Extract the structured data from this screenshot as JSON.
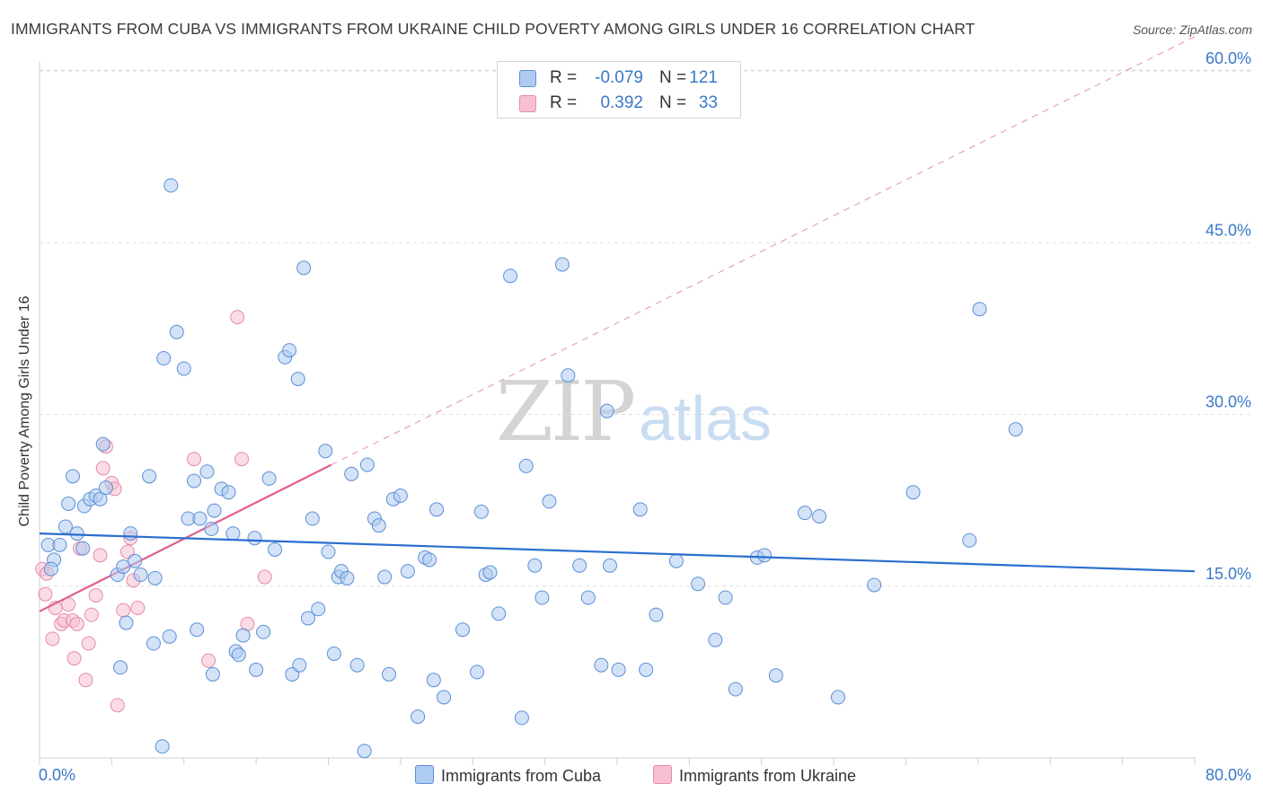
{
  "title": "IMMIGRANTS FROM CUBA VS IMMIGRANTS FROM UKRAINE CHILD POVERTY AMONG GIRLS UNDER 16 CORRELATION CHART",
  "source": "Source: ZipAtlas.com",
  "watermark": {
    "zip": "ZIP",
    "atlas": "atlas"
  },
  "legend": {
    "cuba": {
      "r_label": "R =",
      "r_value": "-0.079",
      "n_label": "N =",
      "n_value": "121"
    },
    "ukraine": {
      "r_label": "R =",
      "r_value": "0.392",
      "n_label": "N =",
      "n_value": "33"
    }
  },
  "bottom_legend": {
    "cuba": "Immigrants from Cuba",
    "ukraine": "Immigrants from Ukraine"
  },
  "colors": {
    "cuba_fill": "#aecbf0",
    "cuba_stroke": "#5b8fd6",
    "cuba_line": "#2b6fcf",
    "ukraine_fill": "#f6c0d2",
    "ukraine_stroke": "#e58aa8",
    "ukraine_line": "#e0608c",
    "axis_text": "#3a78c8",
    "grid": "#dddddd"
  },
  "chart_data": {
    "type": "scatter",
    "title": "IMMIGRANTS FROM CUBA VS IMMIGRANTS FROM UKRAINE CHILD POVERTY AMONG GIRLS UNDER 16 CORRELATION CHART",
    "xlabel": "",
    "ylabel": "Child Poverty Among Girls Under 16",
    "xlim": [
      0,
      80
    ],
    "ylim": [
      0,
      63
    ],
    "x_tick_labels": [
      "0.0%",
      "80.0%"
    ],
    "y_ticks": [
      15,
      30,
      45,
      60
    ],
    "y_tick_labels": [
      "15.0%",
      "30.0%",
      "45.0%",
      "60.0%"
    ],
    "grid": "horizontal dashed",
    "legend_position": "top-center",
    "series": [
      {
        "name": "Immigrants from Cuba",
        "R": -0.079,
        "N": 121,
        "trend": {
          "x": [
            0,
            80
          ],
          "y": [
            19.6,
            16.3
          ]
        },
        "points": [
          [
            0.6,
            18.6
          ],
          [
            1.0,
            17.3
          ],
          [
            0.8,
            16.5
          ],
          [
            1.4,
            18.6
          ],
          [
            1.8,
            20.2
          ],
          [
            2.0,
            22.2
          ],
          [
            2.3,
            24.6
          ],
          [
            2.6,
            19.6
          ],
          [
            3.1,
            22.0
          ],
          [
            3.0,
            18.3
          ],
          [
            3.5,
            22.6
          ],
          [
            3.9,
            22.9
          ],
          [
            4.2,
            22.6
          ],
          [
            4.6,
            23.6
          ],
          [
            4.4,
            27.4
          ],
          [
            5.4,
            16.0
          ],
          [
            5.8,
            16.7
          ],
          [
            6.3,
            19.6
          ],
          [
            6.6,
            17.2
          ],
          [
            7.0,
            16.0
          ],
          [
            7.6,
            24.6
          ],
          [
            8.0,
            15.7
          ],
          [
            7.9,
            10.0
          ],
          [
            8.6,
            34.9
          ],
          [
            9.1,
            50.0
          ],
          [
            9.5,
            37.2
          ],
          [
            10.0,
            34.0
          ],
          [
            10.3,
            20.9
          ],
          [
            10.7,
            24.2
          ],
          [
            10.9,
            11.2
          ],
          [
            11.1,
            20.9
          ],
          [
            11.6,
            25.0
          ],
          [
            11.9,
            20.0
          ],
          [
            12.1,
            21.6
          ],
          [
            12.6,
            23.5
          ],
          [
            13.1,
            23.2
          ],
          [
            13.4,
            19.6
          ],
          [
            13.6,
            9.3
          ],
          [
            14.1,
            10.7
          ],
          [
            14.9,
            19.2
          ],
          [
            15.5,
            11.0
          ],
          [
            15.9,
            24.4
          ],
          [
            16.3,
            18.2
          ],
          [
            17.0,
            35.0
          ],
          [
            17.3,
            35.6
          ],
          [
            17.9,
            33.1
          ],
          [
            18.3,
            42.8
          ],
          [
            18.6,
            12.2
          ],
          [
            18.9,
            20.9
          ],
          [
            19.3,
            13.0
          ],
          [
            19.8,
            26.8
          ],
          [
            20.4,
            9.1
          ],
          [
            20.7,
            15.8
          ],
          [
            20.9,
            16.3
          ],
          [
            21.3,
            15.7
          ],
          [
            21.6,
            24.8
          ],
          [
            22.0,
            8.1
          ],
          [
            22.7,
            25.6
          ],
          [
            23.2,
            20.9
          ],
          [
            23.5,
            20.3
          ],
          [
            23.9,
            15.8
          ],
          [
            24.2,
            7.3
          ],
          [
            24.5,
            22.6
          ],
          [
            25.0,
            22.9
          ],
          [
            25.5,
            16.3
          ],
          [
            26.2,
            3.6
          ],
          [
            26.7,
            17.5
          ],
          [
            27.0,
            17.3
          ],
          [
            27.5,
            21.7
          ],
          [
            28.0,
            5.3
          ],
          [
            29.3,
            11.2
          ],
          [
            30.3,
            7.5
          ],
          [
            30.6,
            21.5
          ],
          [
            30.9,
            16.0
          ],
          [
            31.2,
            16.2
          ],
          [
            31.8,
            12.6
          ],
          [
            32.6,
            42.1
          ],
          [
            33.4,
            3.5
          ],
          [
            33.7,
            25.5
          ],
          [
            34.3,
            16.8
          ],
          [
            34.8,
            14.0
          ],
          [
            35.3,
            22.4
          ],
          [
            36.2,
            43.1
          ],
          [
            36.6,
            33.4
          ],
          [
            37.4,
            16.8
          ],
          [
            38.0,
            14.0
          ],
          [
            38.9,
            8.1
          ],
          [
            39.3,
            30.3
          ],
          [
            39.5,
            16.8
          ],
          [
            40.1,
            7.7
          ],
          [
            41.6,
            21.7
          ],
          [
            42.0,
            7.7
          ],
          [
            42.7,
            12.5
          ],
          [
            44.1,
            17.2
          ],
          [
            45.6,
            15.2
          ],
          [
            46.8,
            10.3
          ],
          [
            47.5,
            14.0
          ],
          [
            48.2,
            6.0
          ],
          [
            49.7,
            17.5
          ],
          [
            50.2,
            17.7
          ],
          [
            51.0,
            7.2
          ],
          [
            53.0,
            21.4
          ],
          [
            54.0,
            21.1
          ],
          [
            55.3,
            5.3
          ],
          [
            57.8,
            15.1
          ],
          [
            60.5,
            23.2
          ],
          [
            64.4,
            19.0
          ],
          [
            65.1,
            39.2
          ],
          [
            67.6,
            28.7
          ],
          [
            6.0,
            11.8
          ],
          [
            9.0,
            10.6
          ],
          [
            12.0,
            7.3
          ],
          [
            15.0,
            7.7
          ],
          [
            17.5,
            7.3
          ],
          [
            18.0,
            8.1
          ],
          [
            20.0,
            18.0
          ],
          [
            22.5,
            0.6
          ],
          [
            8.5,
            1.0
          ],
          [
            27.3,
            6.8
          ],
          [
            13.8,
            9.0
          ],
          [
            5.6,
            7.9
          ]
        ]
      },
      {
        "name": "Immigrants from Ukraine",
        "R": 0.392,
        "N": 33,
        "trend": {
          "x": [
            0,
            20.2
          ],
          "y": [
            12.8,
            25.6
          ]
        },
        "trend_extension": {
          "x": [
            20.2,
            80
          ],
          "y": [
            25.6,
            63.0
          ]
        },
        "points": [
          [
            0.2,
            16.5
          ],
          [
            0.5,
            16.1
          ],
          [
            0.4,
            14.3
          ],
          [
            0.9,
            10.4
          ],
          [
            1.1,
            13.1
          ],
          [
            1.5,
            11.7
          ],
          [
            1.7,
            12.0
          ],
          [
            2.0,
            13.4
          ],
          [
            2.3,
            12.0
          ],
          [
            2.4,
            8.7
          ],
          [
            2.6,
            11.7
          ],
          [
            2.8,
            18.3
          ],
          [
            3.2,
            6.8
          ],
          [
            3.4,
            10.0
          ],
          [
            3.6,
            12.5
          ],
          [
            3.9,
            14.2
          ],
          [
            4.2,
            17.7
          ],
          [
            4.4,
            25.3
          ],
          [
            4.6,
            27.2
          ],
          [
            5.0,
            24.0
          ],
          [
            5.2,
            23.5
          ],
          [
            5.4,
            4.6
          ],
          [
            5.8,
            12.9
          ],
          [
            6.1,
            18.0
          ],
          [
            6.3,
            19.2
          ],
          [
            6.5,
            15.5
          ],
          [
            6.8,
            13.1
          ],
          [
            10.7,
            26.1
          ],
          [
            11.7,
            8.5
          ],
          [
            13.7,
            38.5
          ],
          [
            14.0,
            26.1
          ],
          [
            14.4,
            11.7
          ],
          [
            15.6,
            15.8
          ]
        ]
      }
    ]
  }
}
